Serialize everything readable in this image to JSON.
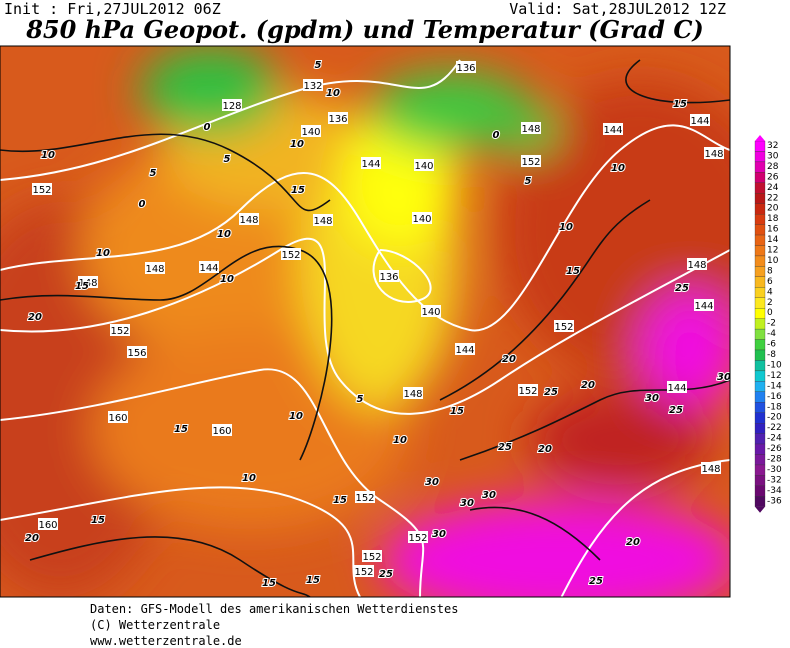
{
  "header": {
    "init": "Init : Fri,27JUL2012 06Z",
    "valid": "Valid: Sat,28JUL2012 12Z",
    "title": "850 hPa Geopot. (gpdm) und Temperatur (Grad C)"
  },
  "colorbar": {
    "levels": [
      32,
      30,
      28,
      26,
      24,
      22,
      20,
      18,
      16,
      14,
      12,
      10,
      8,
      6,
      4,
      2,
      0,
      -2,
      -4,
      -6,
      -8,
      -10,
      -12,
      -14,
      -16,
      -18,
      -20,
      -22,
      -24,
      -26,
      -28,
      -30,
      -32,
      -34,
      -36
    ],
    "colors": [
      "#ff00ff",
      "#f000e0",
      "#e000b0",
      "#d00070",
      "#c01030",
      "#b81818",
      "#c82810",
      "#d83c10",
      "#e05010",
      "#e86414",
      "#ee7818",
      "#f28c1c",
      "#f6a020",
      "#f8b820",
      "#fad020",
      "#fce820",
      "#ffff00",
      "#c0f020",
      "#80e040",
      "#40d040",
      "#20c050",
      "#10c0a0",
      "#10c8d0",
      "#20b0f0",
      "#2080f0",
      "#2050e0",
      "#2030d0",
      "#3020c0",
      "#5020b0",
      "#6818a8",
      "#7a189a",
      "#8a1890",
      "#7a1080",
      "#6a0870",
      "#500860"
    ]
  },
  "geopotential_labels": [
    136,
    128,
    132,
    136,
    140,
    144,
    148,
    152,
    140,
    144,
    148,
    144,
    152,
    148,
    148,
    152,
    140,
    136,
    140,
    144,
    148,
    152,
    152,
    148,
    144,
    148,
    152,
    156,
    160,
    160,
    148,
    144,
    144,
    148,
    160,
    152,
    152,
    152,
    152
  ],
  "temperature_labels": [
    5,
    10,
    0,
    5,
    0,
    5,
    10,
    15,
    10,
    10,
    15,
    20,
    10,
    10,
    15,
    10,
    10,
    15,
    15,
    20,
    15,
    15,
    10,
    15,
    20,
    10,
    15,
    20,
    25,
    20,
    25,
    30,
    30,
    30,
    30,
    25,
    25,
    20,
    30,
    30,
    25,
    25,
    15,
    0,
    5,
    10,
    5
  ],
  "footer": {
    "line1": "Daten: GFS-Modell des amerikanischen Wetterdienstes",
    "line2": "(C) Wetterzentrale",
    "line3": "www.wetterzentrale.de"
  }
}
